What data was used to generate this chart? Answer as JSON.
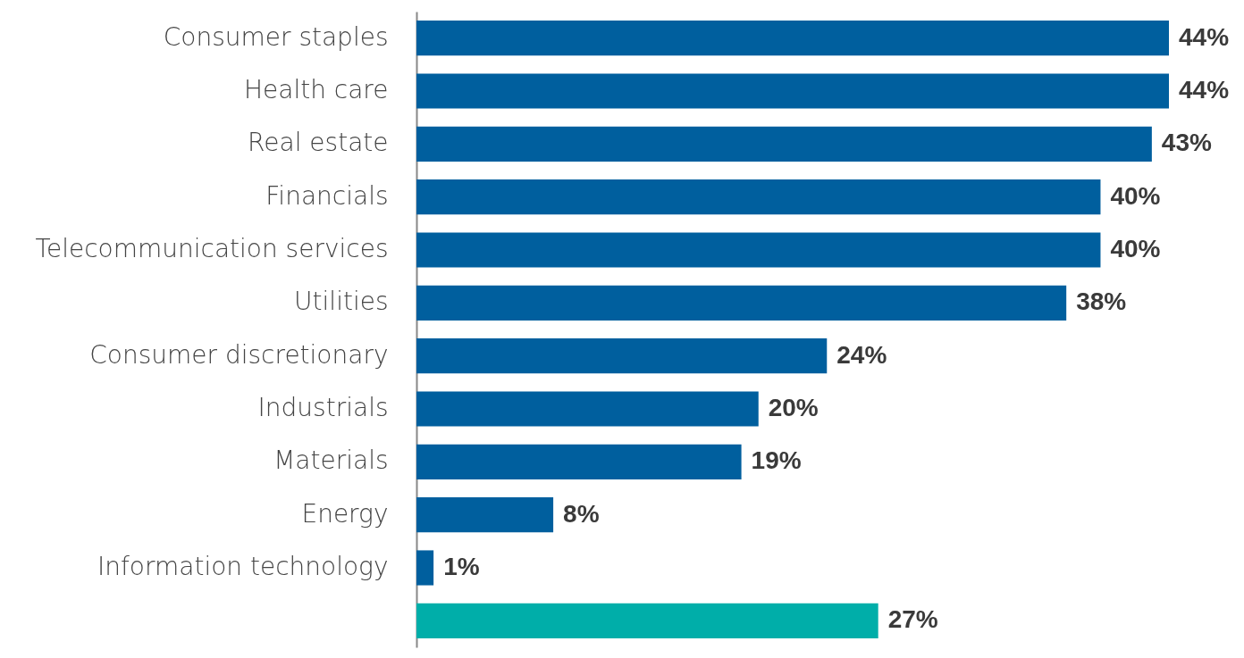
{
  "chart_data": {
    "type": "bar",
    "orientation": "horizontal",
    "categories": [
      "Consumer staples",
      "Health care",
      "Real estate",
      "Financials",
      "Telecommunication services",
      "Utilities",
      "Consumer discretionary",
      "Industrials",
      "Materials",
      "Energy",
      "Information technology",
      null
    ],
    "values": [
      44,
      44,
      43,
      40,
      40,
      38,
      24,
      20,
      19,
      8,
      1,
      27
    ],
    "colors": [
      "#005f9e",
      "#005f9e",
      "#005f9e",
      "#005f9e",
      "#005f9e",
      "#005f9e",
      "#005f9e",
      "#005f9e",
      "#005f9e",
      "#005f9e",
      "#005f9e",
      "#00aea9"
    ],
    "value_labels": [
      "44%",
      "44%",
      "43%",
      "40%",
      "40%",
      "38%",
      "24%",
      "20%",
      "19%",
      "8%",
      "1%",
      "27%"
    ]
  }
}
